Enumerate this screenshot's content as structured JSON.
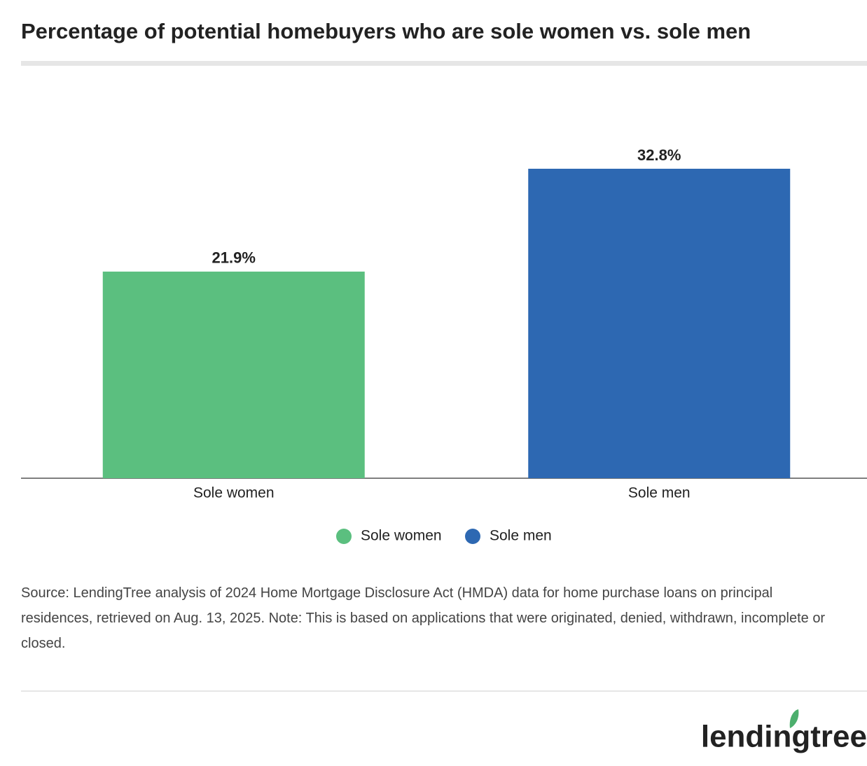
{
  "chart_data": {
    "type": "bar",
    "title": "Percentage of potential homebuyers who are sole women vs. sole men",
    "categories": [
      "Sole women",
      "Sole men"
    ],
    "values": [
      21.9,
      32.8
    ],
    "value_labels": [
      "21.9%",
      "32.8%"
    ],
    "colors": [
      "#5bbf7f",
      "#2d68b2"
    ],
    "legend": "bottom",
    "source": "Source: LendingTree analysis of 2024 Home Mortgage Disclosure Act (HMDA) data for home purchase loans on principal residences, retrieved on Aug. 13, 2025. Note: This is based on applications that were originated, denied, withdrawn, incomplete or closed.",
    "logo": "lendingtree"
  }
}
